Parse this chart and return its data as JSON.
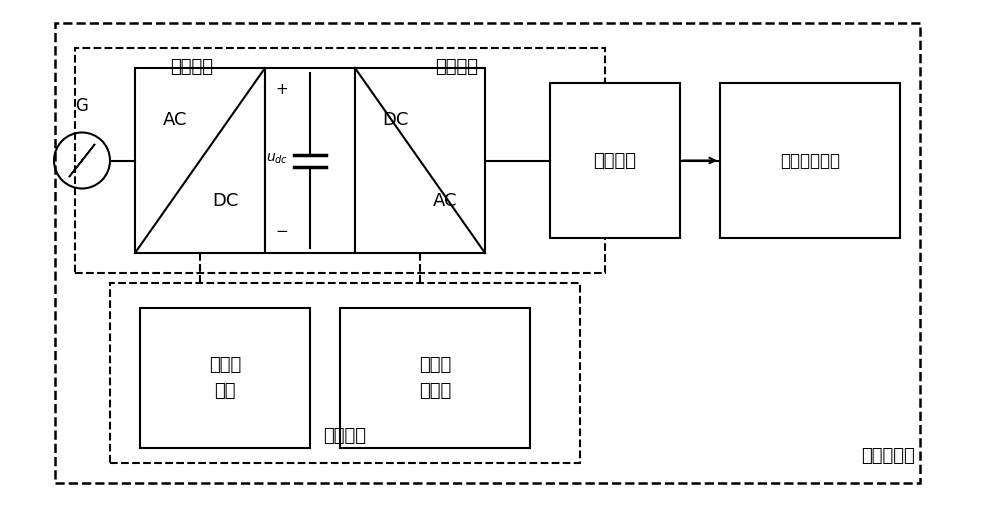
{
  "bg_color": "#ffffff",
  "line_color": "#000000",
  "fig_width": 10.0,
  "fig_height": 5.08,
  "dpi": 100,
  "labels": {
    "G": "G",
    "rectifier_unit": "整流单元",
    "inverter_unit": "逆变单元",
    "filter_unit": "滤波单元",
    "power_amp_output": "功率放大输出",
    "dual_closed_loop": "双闭环\n控制",
    "carrier_phase": "载波移\n相调制",
    "control_unit": "控制单元",
    "power_amplifier": "功率放大器",
    "AC_DC": "AC\n\nDC",
    "DC_AC": "DC\n\nAC",
    "udc": "$u_{dc}$",
    "plus": "+",
    "minus": "−"
  }
}
